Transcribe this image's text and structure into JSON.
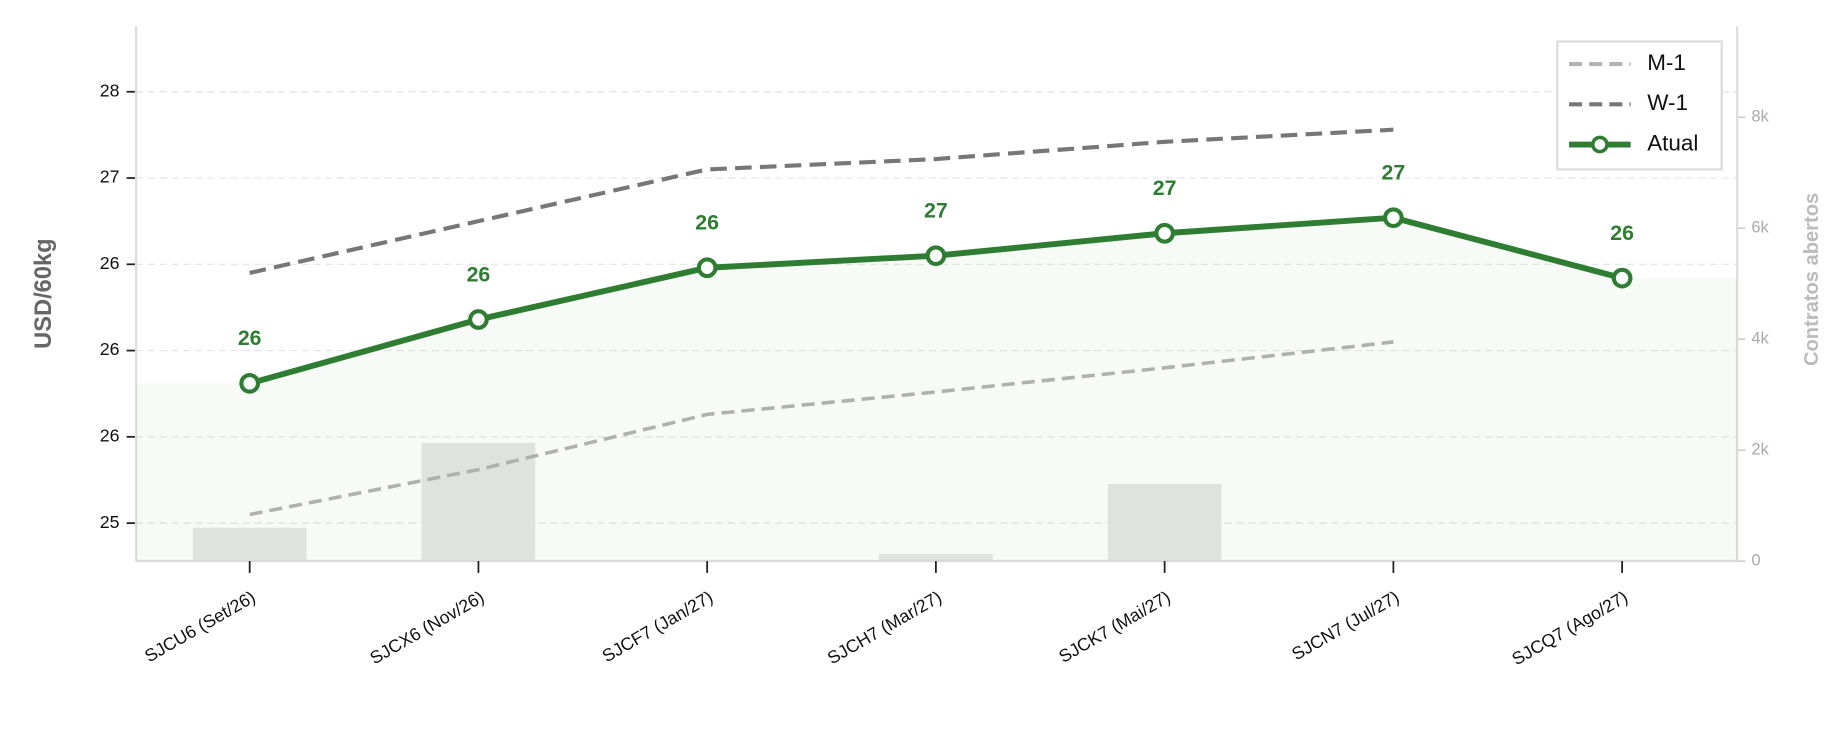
{
  "chart_data": {
    "type": "line",
    "categories": [
      "SJCU6 (Set/26)",
      "SJCX6 (Nov/26)",
      "SJCF7 (Jan/27)",
      "SJCH7 (Mar/27)",
      "SJCK7 (Mai/27)",
      "SJCN7 (Jul/27)",
      "SJCQ7 (Ago/27)"
    ],
    "ylabel": "USD/60kg",
    "y2label": "Contratos abertos",
    "ylim": [
      24.78,
      27.88
    ],
    "yticks": [
      {
        "value": 25,
        "label": "25"
      },
      {
        "value": 25.5,
        "label": "26"
      },
      {
        "value": 26,
        "label": "26"
      },
      {
        "value": 26.5,
        "label": "26"
      },
      {
        "value": 27,
        "label": "27"
      },
      {
        "value": 27.5,
        "label": "28"
      }
    ],
    "y2lim": [
      0,
      9640
    ],
    "y2ticks": [
      {
        "value": 0,
        "label": "0"
      },
      {
        "value": 2000,
        "label": "2k"
      },
      {
        "value": 4000,
        "label": "4k"
      },
      {
        "value": 6000,
        "label": "6k"
      },
      {
        "value": 8000,
        "label": "8k"
      }
    ],
    "grid": true,
    "legend": "upper right",
    "series": [
      {
        "name": "M-1",
        "color": "#b3b3b3",
        "dash": "dashed",
        "values": [
          25.05,
          25.31,
          25.63,
          25.76,
          25.9,
          26.05,
          null
        ]
      },
      {
        "name": "W-1",
        "color": "#777777",
        "dash": "dashed",
        "values": [
          26.45,
          26.75,
          27.05,
          27.11,
          27.21,
          27.28,
          null
        ]
      },
      {
        "name": "Atual",
        "color": "#2e7d32",
        "values": [
          25.81,
          26.18,
          26.48,
          26.55,
          26.68,
          26.77,
          26.42
        ],
        "value_labels": [
          "26",
          "26",
          "26",
          "27",
          "27",
          "27",
          "26"
        ]
      },
      {
        "name": "Contratos abertos",
        "type": "bar",
        "axis": "y2",
        "color": "#e6e7e6",
        "values": [
          600,
          2130,
          0,
          130,
          1390,
          0,
          0
        ]
      }
    ]
  }
}
